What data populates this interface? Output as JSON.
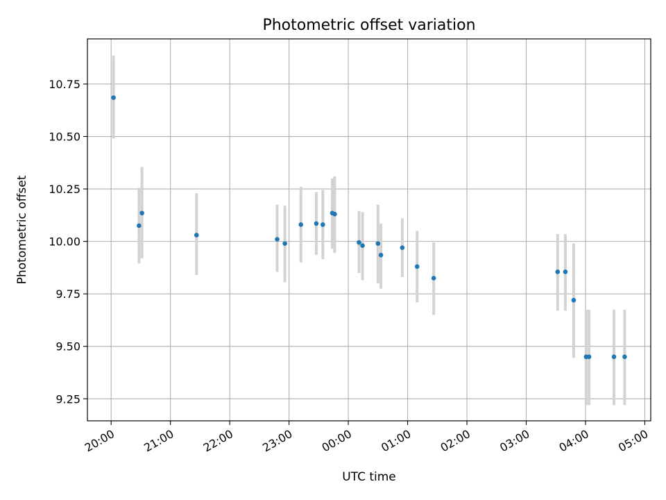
{
  "chart_data": {
    "type": "scatter",
    "title": "Photometric offset variation",
    "xlabel": "UTC time",
    "ylabel": "Photometric offset",
    "x_unit": "hours since 20:00 UTC",
    "xlim": [
      -0.4,
      9.1
    ],
    "ylim": [
      9.145,
      10.965
    ],
    "grid": true,
    "x_ticks": [
      {
        "value": 0,
        "label": "20:00"
      },
      {
        "value": 1,
        "label": "21:00"
      },
      {
        "value": 2,
        "label": "22:00"
      },
      {
        "value": 3,
        "label": "23:00"
      },
      {
        "value": 4,
        "label": "00:00"
      },
      {
        "value": 5,
        "label": "01:00"
      },
      {
        "value": 6,
        "label": "02:00"
      },
      {
        "value": 7,
        "label": "03:00"
      },
      {
        "value": 8,
        "label": "04:00"
      },
      {
        "value": 9,
        "label": "05:00"
      }
    ],
    "y_ticks": [
      {
        "value": 9.25,
        "label": "9.25"
      },
      {
        "value": 9.5,
        "label": "9.50"
      },
      {
        "value": 9.75,
        "label": "9.75"
      },
      {
        "value": 10.0,
        "label": "10.00"
      },
      {
        "value": 10.25,
        "label": "10.25"
      },
      {
        "value": 10.5,
        "label": "10.50"
      },
      {
        "value": 10.75,
        "label": "10.75"
      }
    ],
    "colors": {
      "marker": "#1f77b4",
      "errorbar": "#d3d3d3",
      "grid": "#b0b0b0",
      "axis": "#000000"
    },
    "series": [
      {
        "name": "offset",
        "points": [
          {
            "x": 0.04,
            "y": 10.685,
            "lo": 10.49,
            "hi": 10.885
          },
          {
            "x": 0.47,
            "y": 10.075,
            "lo": 9.895,
            "hi": 10.255
          },
          {
            "x": 0.52,
            "y": 10.135,
            "lo": 9.92,
            "hi": 10.355
          },
          {
            "x": 1.44,
            "y": 10.03,
            "lo": 9.84,
            "hi": 10.23
          },
          {
            "x": 2.8,
            "y": 10.01,
            "lo": 9.855,
            "hi": 10.175
          },
          {
            "x": 2.93,
            "y": 9.99,
            "lo": 9.805,
            "hi": 10.17
          },
          {
            "x": 3.2,
            "y": 10.08,
            "lo": 9.9,
            "hi": 10.26
          },
          {
            "x": 3.46,
            "y": 10.085,
            "lo": 9.935,
            "hi": 10.235
          },
          {
            "x": 3.57,
            "y": 10.08,
            "lo": 9.915,
            "hi": 10.245
          },
          {
            "x": 3.73,
            "y": 10.135,
            "lo": 9.965,
            "hi": 10.3
          },
          {
            "x": 3.77,
            "y": 10.13,
            "lo": 9.945,
            "hi": 10.31
          },
          {
            "x": 4.18,
            "y": 9.995,
            "lo": 9.85,
            "hi": 10.145
          },
          {
            "x": 4.24,
            "y": 9.98,
            "lo": 9.815,
            "hi": 10.14
          },
          {
            "x": 4.5,
            "y": 9.99,
            "lo": 9.8,
            "hi": 10.175
          },
          {
            "x": 4.55,
            "y": 9.935,
            "lo": 9.775,
            "hi": 10.085
          },
          {
            "x": 4.91,
            "y": 9.97,
            "lo": 9.83,
            "hi": 10.11
          },
          {
            "x": 5.16,
            "y": 9.88,
            "lo": 9.71,
            "hi": 10.05
          },
          {
            "x": 5.44,
            "y": 9.825,
            "lo": 9.65,
            "hi": 9.995
          },
          {
            "x": 7.53,
            "y": 9.855,
            "lo": 9.67,
            "hi": 10.035
          },
          {
            "x": 7.66,
            "y": 9.855,
            "lo": 9.67,
            "hi": 10.035
          },
          {
            "x": 7.8,
            "y": 9.72,
            "lo": 9.445,
            "hi": 9.99
          },
          {
            "x": 8.01,
            "y": 9.45,
            "lo": 9.22,
            "hi": 9.675
          },
          {
            "x": 8.06,
            "y": 9.45,
            "lo": 9.22,
            "hi": 9.675
          },
          {
            "x": 8.48,
            "y": 9.45,
            "lo": 9.22,
            "hi": 9.675
          },
          {
            "x": 8.66,
            "y": 9.45,
            "lo": 9.22,
            "hi": 9.675
          }
        ]
      }
    ]
  }
}
